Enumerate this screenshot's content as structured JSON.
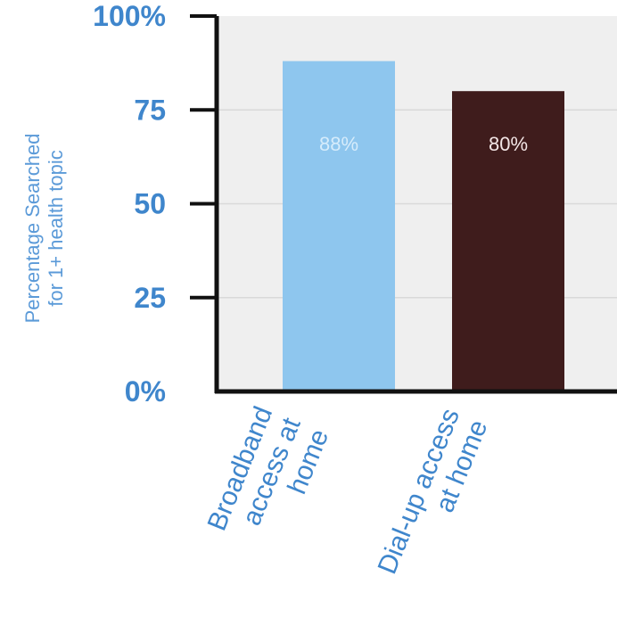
{
  "chart_data": {
    "type": "bar",
    "ylabel_lines": [
      "Percentage Searched",
      "for 1+ health topic"
    ],
    "xlabel": "",
    "ylim": [
      0,
      100
    ],
    "yticks": [
      {
        "value": 0,
        "label": "0%"
      },
      {
        "value": 25,
        "label": "25"
      },
      {
        "value": 50,
        "label": "50"
      },
      {
        "value": 75,
        "label": "75"
      },
      {
        "value": 100,
        "label": "100%"
      }
    ],
    "grid": true,
    "categories": [
      {
        "lines": [
          "Broadband",
          "access at",
          "home"
        ]
      },
      {
        "lines": [
          "Dial-up access",
          "at home"
        ]
      }
    ],
    "values": [
      88,
      80
    ],
    "data_labels": [
      "88%",
      "80%"
    ],
    "colors": [
      "#8ec6ee",
      "#3f1c1c"
    ],
    "label_colors": [
      "#d6ecfb",
      "#f3e6e6"
    ],
    "plot_background": "#efefef",
    "gridline_color": "#d9d9d9",
    "axis_color": "#111111"
  }
}
